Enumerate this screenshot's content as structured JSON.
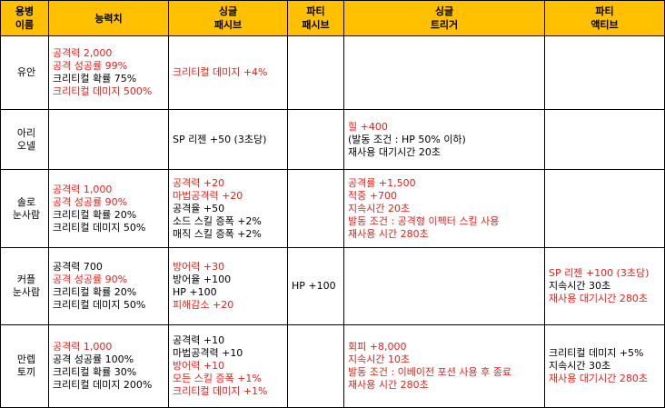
{
  "headers": {
    "name": [
      "용병",
      "이름"
    ],
    "stats": [
      "능력치"
    ],
    "single_passive": [
      "싱글",
      "패시브"
    ],
    "party_passive": [
      "파티",
      "패시브"
    ],
    "single_trigger": [
      "싱글",
      "트리거"
    ],
    "party_active": [
      "파티",
      "액티브"
    ]
  },
  "colors": {
    "header_bg": "#ffc000",
    "highlight_text": "#e8201a",
    "normal_text": "#000000"
  },
  "rows": [
    {
      "name": [
        "유안"
      ],
      "stats": [
        {
          "text": "공격력 2,000",
          "red": true
        },
        {
          "text": "공격 성공률 99%",
          "red": true
        },
        {
          "text": "크리티컬 확률 75%",
          "red": false
        },
        {
          "text": "크리티컬 데미지 500%",
          "red": true
        }
      ],
      "single_passive": [
        {
          "text": "크리티컬 데미지 +4%",
          "red": true
        }
      ],
      "party_passive": [],
      "single_trigger": [],
      "party_active": []
    },
    {
      "name": [
        "아리",
        "오넬"
      ],
      "stats": [],
      "single_passive": [
        {
          "text": "SP 리젠 +50 (3초당)",
          "red": false
        }
      ],
      "party_passive": [],
      "single_trigger": [
        {
          "text": "힐 +400",
          "red": true
        },
        {
          "text": "(발동 조건 : HP 50% 이하)",
          "red": false
        },
        {
          "text": "재사용 대기시간 20초",
          "red": false
        }
      ],
      "party_active": []
    },
    {
      "name": [
        "솔로",
        "눈사람"
      ],
      "stats": [
        {
          "text": "공격력 1,000",
          "red": true
        },
        {
          "text": "공격 성공률 90%",
          "red": true
        },
        {
          "text": "크리티컬 확률 20%",
          "red": false
        },
        {
          "text": "크리티컬 데미지 50%",
          "red": false
        }
      ],
      "single_passive": [
        {
          "text": "공격력 +20",
          "red": true
        },
        {
          "text": "마법공격력 +20",
          "red": true
        },
        {
          "text": "공격율 +50",
          "red": false
        },
        {
          "text": "소드 스킬 증폭 +2%",
          "red": false
        },
        {
          "text": "매직 스킬 증폭 +2%",
          "red": false
        }
      ],
      "party_passive": [],
      "single_trigger": [
        {
          "text": "공격률 +1,500",
          "red": true
        },
        {
          "text": "적중 +700",
          "red": true
        },
        {
          "text": "지속시간 20초",
          "red": true
        },
        {
          "text": "발동 조건 : 공격형 이펙터 스킬 사용",
          "red": true
        },
        {
          "text": "재사용 시간 280초",
          "red": true
        }
      ],
      "party_active": []
    },
    {
      "name": [
        "커플",
        "눈사람"
      ],
      "stats": [
        {
          "text": "공격력 700",
          "red": false
        },
        {
          "text": "공격 성공률 90%",
          "red": true
        },
        {
          "text": "크리티컬 확률 20%",
          "red": false
        },
        {
          "text": "크리티컬 데미지 50%",
          "red": false
        }
      ],
      "single_passive": [
        {
          "text": "방어력 +30",
          "red": true
        },
        {
          "text": "방어율 +100",
          "red": false
        },
        {
          "text": "HP +100",
          "red": false
        },
        {
          "text": "피해감소 +20",
          "red": true
        }
      ],
      "party_passive": [
        {
          "text": "HP +100",
          "red": false
        }
      ],
      "single_trigger": [],
      "party_active": [
        {
          "text": "SP 리젠 +100 (3초당)",
          "red": true
        },
        {
          "text": "지속시간 30초",
          "red": false
        },
        {
          "text": "재사용 대기시간 280초",
          "red": true
        }
      ]
    },
    {
      "name": [
        "만렙",
        "토끼"
      ],
      "stats": [
        {
          "text": "공격력 1,000",
          "red": true
        },
        {
          "text": "공격 성공률 100%",
          "red": false
        },
        {
          "text": "크리티컬 확률 30%",
          "red": false
        },
        {
          "text": "크리티컬 데미지 200%",
          "red": false
        }
      ],
      "single_passive": [
        {
          "text": "공격력 +10",
          "red": false
        },
        {
          "text": "마법공격력 +10",
          "red": false
        },
        {
          "text": "방어력 +10",
          "red": true
        },
        {
          "text": "모든 스킬 증폭 +1%",
          "red": true
        },
        {
          "text": "크리티컬 데미지 +1%",
          "red": true
        }
      ],
      "party_passive": [],
      "single_trigger": [
        {
          "text": "회피 +8,000",
          "red": true
        },
        {
          "text": "지속시간 10초",
          "red": true
        },
        {
          "text": "발동 조건 : 이베이전 포션 사용 후 종료",
          "red": true
        },
        {
          "text": "재사용 시간 280초",
          "red": true
        }
      ],
      "party_active": [
        {
          "text": "크리티컬 데미지 +5%",
          "red": false
        },
        {
          "text": "지속시간 30초",
          "red": false
        },
        {
          "text": "재사용 대기시간 280초",
          "red": true
        }
      ]
    }
  ]
}
